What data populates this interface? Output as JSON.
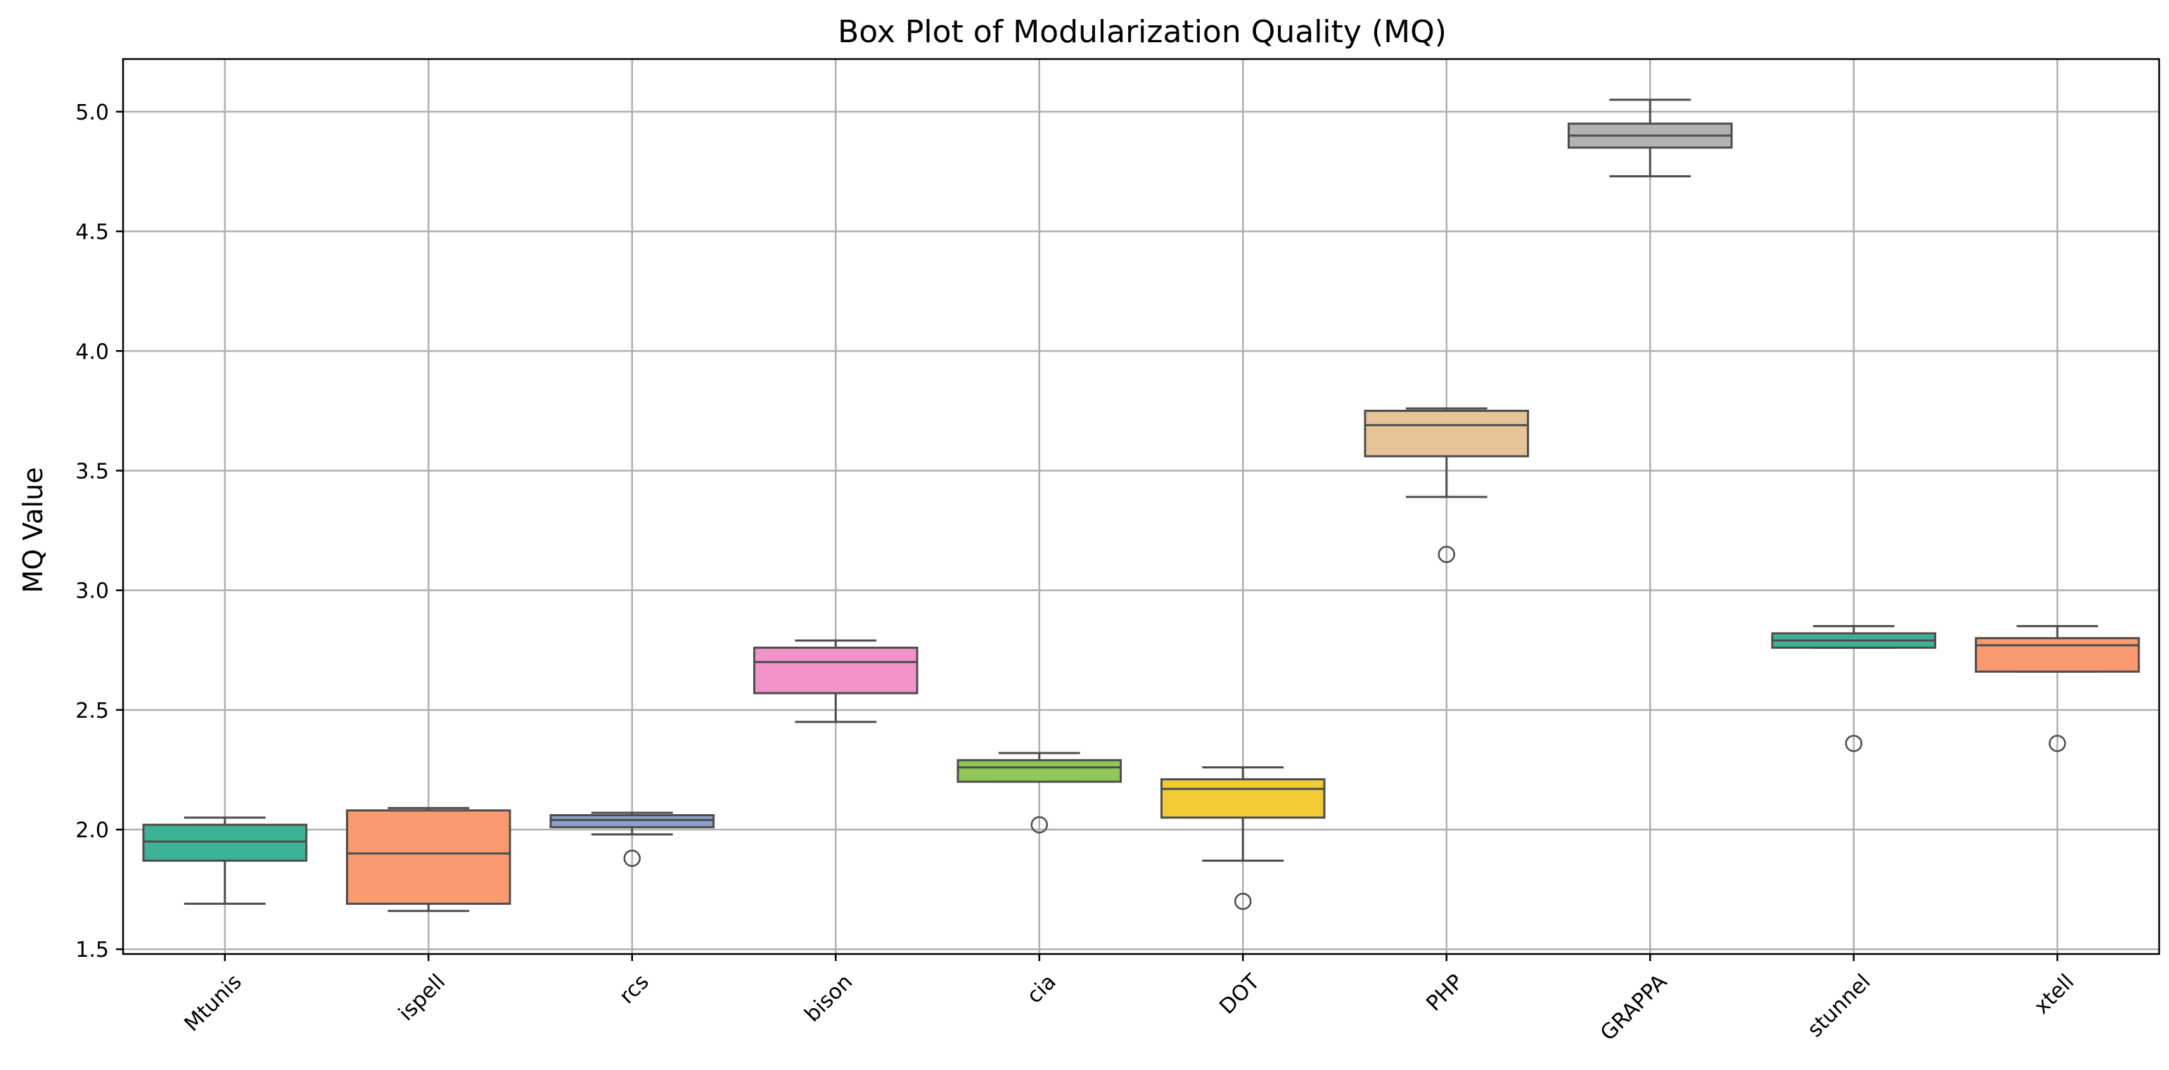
{
  "chart_data": {
    "type": "box",
    "title": "Box Plot of Modularization Quality (MQ)",
    "xlabel": "",
    "ylabel": "MQ Value",
    "ylim": [
      1.48,
      5.22
    ],
    "yticks": [
      1.5,
      2.0,
      2.5,
      3.0,
      3.5,
      4.0,
      4.5,
      5.0
    ],
    "ytick_labels": [
      "1.5",
      "2.0",
      "2.5",
      "3.0",
      "3.5",
      "4.0",
      "4.5",
      "5.0"
    ],
    "grid": true,
    "xtick_rotation": 45,
    "categories": [
      "Mtunis",
      "ispell",
      "rcs",
      "bison",
      "cia",
      "DOT",
      "PHP",
      "GRAPPA",
      "stunnel",
      "xtell"
    ],
    "series": [
      {
        "name": "Mtunis",
        "color": "#3cb397",
        "whisker_low": 1.69,
        "q1": 1.87,
        "median": 1.95,
        "q3": 2.02,
        "whisker_high": 2.05,
        "outliers": []
      },
      {
        "name": "ispell",
        "color": "#fb9a70",
        "whisker_low": 1.66,
        "q1": 1.69,
        "median": 1.9,
        "q3": 2.08,
        "whisker_high": 2.09,
        "outliers": []
      },
      {
        "name": "rcs",
        "color": "#8da0cb",
        "whisker_low": 1.98,
        "q1": 2.01,
        "median": 2.04,
        "q3": 2.06,
        "whisker_high": 2.07,
        "outliers": [
          1.88
        ]
      },
      {
        "name": "bison",
        "color": "#f195c9",
        "whisker_low": 2.45,
        "q1": 2.57,
        "median": 2.7,
        "q3": 2.76,
        "whisker_high": 2.79,
        "outliers": []
      },
      {
        "name": "cia",
        "color": "#8fc854",
        "whisker_low": 2.2,
        "q1": 2.2,
        "median": 2.26,
        "q3": 2.29,
        "whisker_high": 2.32,
        "outliers": [
          2.02
        ]
      },
      {
        "name": "DOT",
        "color": "#f0cb33",
        "whisker_low": 1.87,
        "q1": 2.05,
        "median": 2.17,
        "q3": 2.21,
        "whisker_high": 2.26,
        "outliers": [
          1.7
        ]
      },
      {
        "name": "PHP",
        "color": "#e7c399",
        "whisker_low": 3.39,
        "q1": 3.56,
        "median": 3.69,
        "q3": 3.75,
        "whisker_high": 3.76,
        "outliers": [
          3.15
        ]
      },
      {
        "name": "GRAPPA",
        "color": "#b3b3b3",
        "whisker_low": 4.73,
        "q1": 4.85,
        "median": 4.9,
        "q3": 4.95,
        "whisker_high": 5.05,
        "outliers": []
      },
      {
        "name": "stunnel",
        "color": "#3cb397",
        "whisker_low": 2.76,
        "q1": 2.76,
        "median": 2.79,
        "q3": 2.82,
        "whisker_high": 2.85,
        "outliers": [
          2.36
        ]
      },
      {
        "name": "xtell",
        "color": "#fb9a70",
        "whisker_low": 2.66,
        "q1": 2.66,
        "median": 2.77,
        "q3": 2.8,
        "whisker_high": 2.85,
        "outliers": [
          2.36
        ]
      }
    ]
  }
}
